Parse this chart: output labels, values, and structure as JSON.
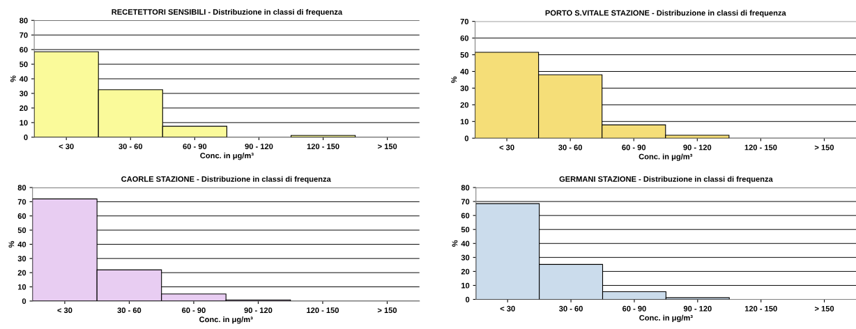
{
  "chart_data": [
    {
      "type": "bar",
      "title": "RECETETTORI SENSIBILI - Distribuzione in classi di frequenza",
      "xlabel": "Conc. in μg/m³",
      "ylabel": "%",
      "categories": [
        "< 30",
        "30 - 60",
        "60 - 90",
        "90 - 120",
        "120 - 150",
        "> 150"
      ],
      "values": [
        58.5,
        32.5,
        7.5,
        null,
        1.2,
        0
      ],
      "color": "#fafa9a",
      "ylim": [
        0,
        80
      ],
      "yticks": [
        0,
        10,
        20,
        30,
        40,
        50,
        60,
        70,
        80
      ],
      "grid": "y"
    },
    {
      "type": "bar",
      "title": "PORTO S.VITALE STAZIONE - Distribuzione in classi di frequenza",
      "xlabel": "Conc. in μg/m³",
      "ylabel": "%",
      "categories": [
        "< 30",
        "30 - 60",
        "60 - 90",
        "90 - 120",
        "120 - 150",
        "> 150"
      ],
      "values": [
        51.5,
        38,
        8,
        1.8,
        0,
        0
      ],
      "color": "#f5de78",
      "ylim": [
        0,
        70
      ],
      "yticks": [
        0,
        10,
        20,
        30,
        40,
        50,
        60,
        70
      ],
      "grid": "y"
    },
    {
      "type": "bar",
      "title": "CAORLE STAZIONE - Distribuzione in classi di frequenza",
      "xlabel": "Conc. in μg/m³",
      "ylabel": "%",
      "categories": [
        "< 30",
        "30 - 60",
        "60 - 90",
        "90 - 120",
        "120 - 150",
        "> 150"
      ],
      "values": [
        72,
        22,
        5,
        0.8,
        0,
        0
      ],
      "color": "#e8cdf2",
      "ylim": [
        0,
        80
      ],
      "yticks": [
        0,
        10,
        20,
        30,
        40,
        50,
        60,
        70,
        80
      ],
      "grid": "y"
    },
    {
      "type": "bar",
      "title": "GERMANI STAZIONE - Distribuzione in classi di frequenza",
      "xlabel": "Conc. in μg/m³",
      "ylabel": "%",
      "categories": [
        "< 30",
        "30 - 60",
        "60 - 90",
        "90 - 120",
        "120 - 150",
        "> 150"
      ],
      "values": [
        68.5,
        25,
        5.5,
        1.2,
        0,
        0
      ],
      "color": "#cbdcec",
      "ylim": [
        0,
        80
      ],
      "yticks": [
        0,
        10,
        20,
        30,
        40,
        50,
        60,
        70,
        80
      ],
      "grid": "y"
    }
  ]
}
